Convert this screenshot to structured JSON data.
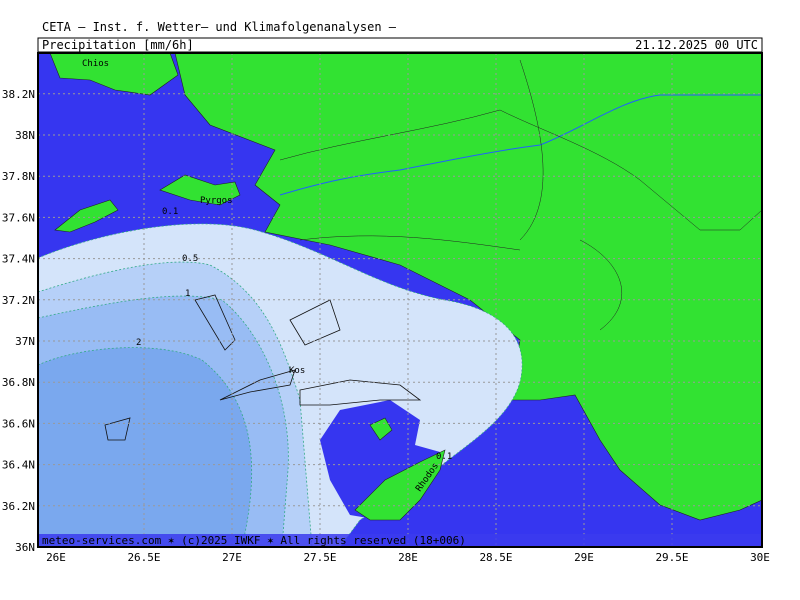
{
  "header": {
    "source": "CETA — Inst. f. Wetter— und Klimafolgenanalysen —",
    "title": "Precipitation [mm/6h]",
    "date": "21.12.2025 00 UTC"
  },
  "lon_labels": [
    "26E",
    "26.5E",
    "27E",
    "27.5E",
    "28E",
    "28.5E",
    "29E",
    "29.5E",
    "30E"
  ],
  "lat_labels": [
    "36N",
    "36.2N",
    "36.4N",
    "36.6N",
    "36.8N",
    "37N",
    "37.2N",
    "37.4N",
    "37.6N",
    "37.8N",
    "38N",
    "38.2N"
  ],
  "contour_labels": [
    "0.1",
    "0.5",
    "1",
    "2",
    "0.1"
  ],
  "places": [
    "Chios",
    "Pyrgos",
    "Kos",
    "Rhodos"
  ],
  "footer": "meteo-services.com ✶ (c)2025 IWKF ✶ All rights reserved (18+006)"
}
